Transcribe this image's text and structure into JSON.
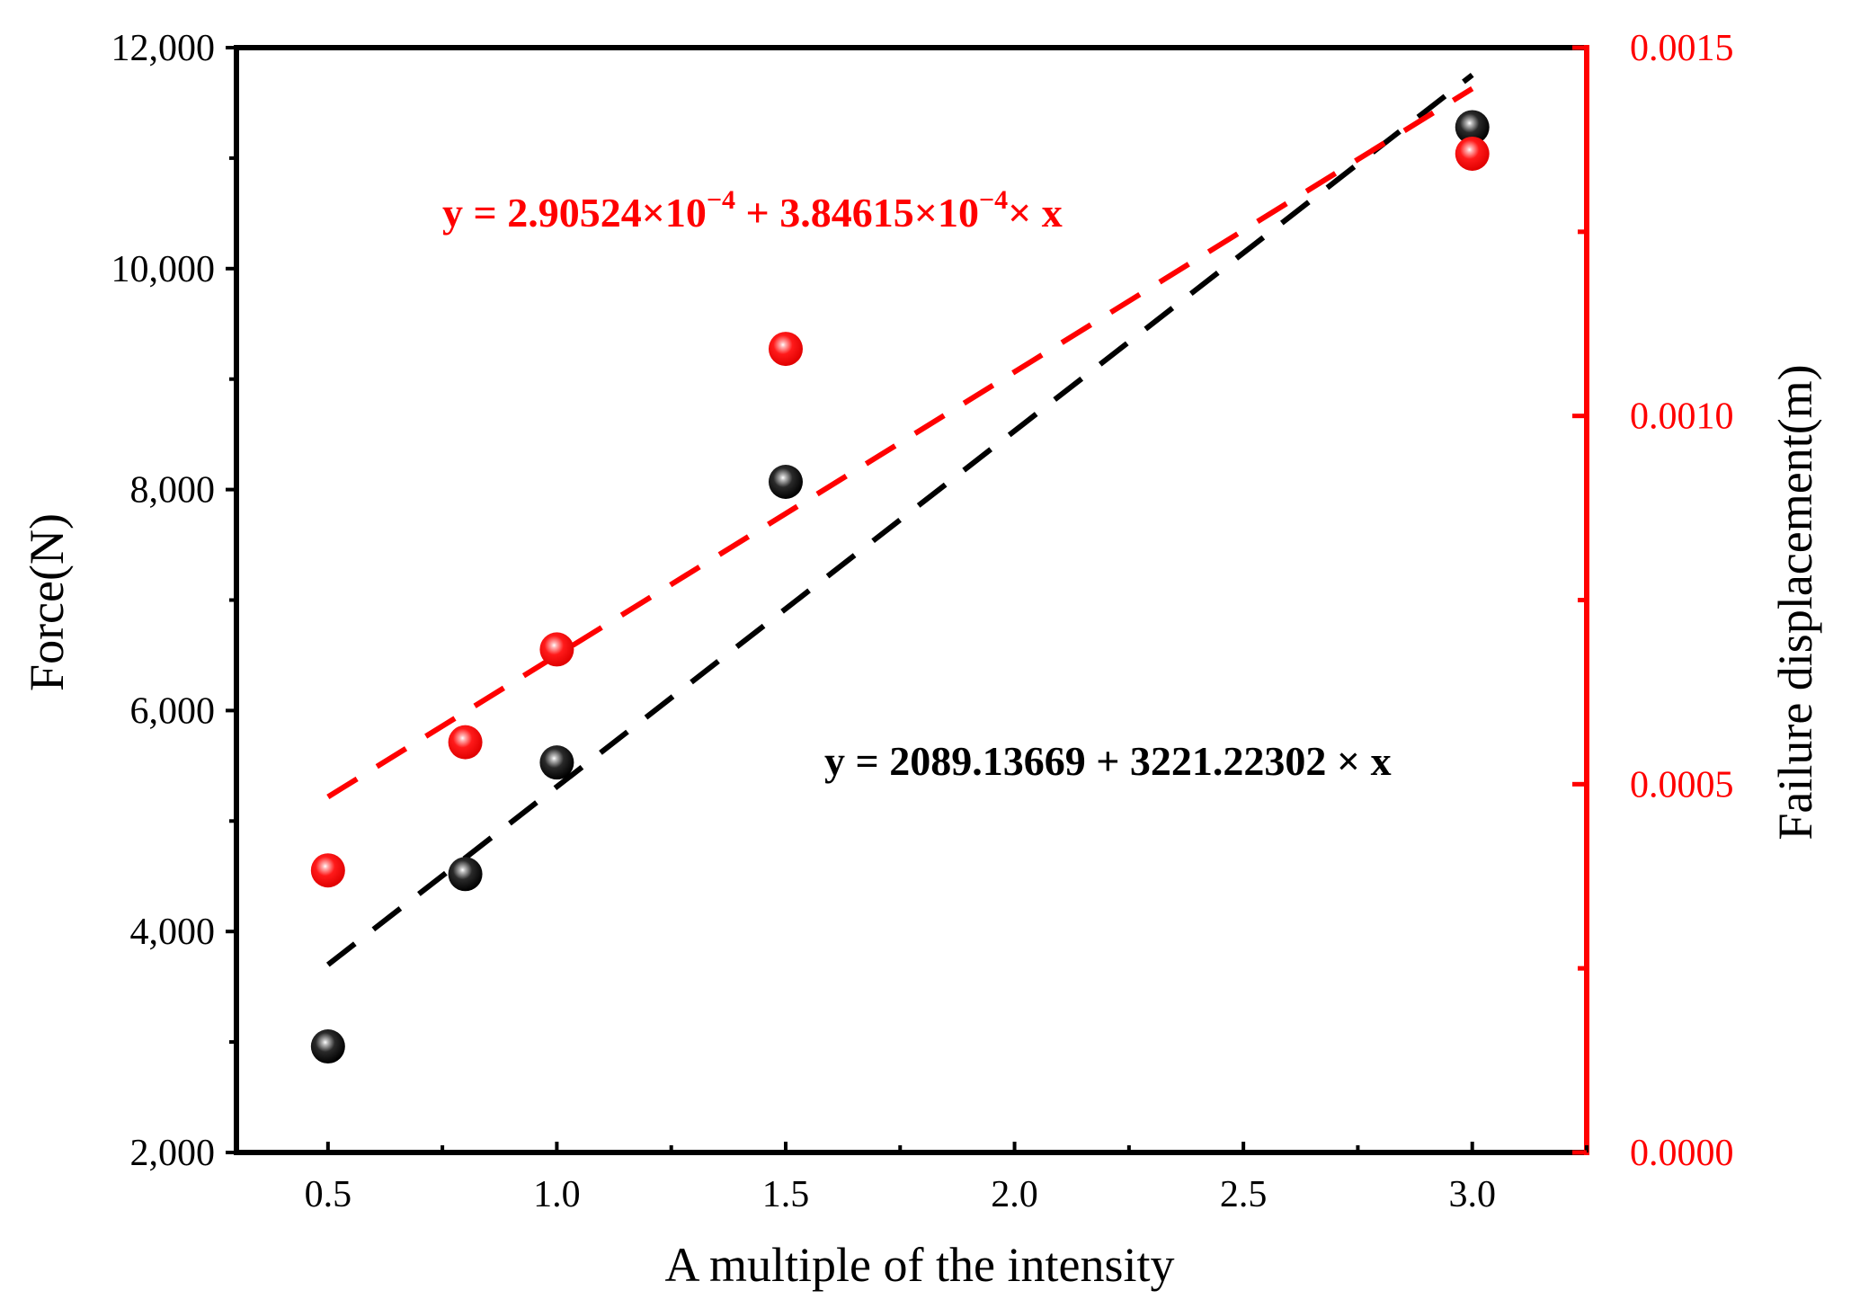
{
  "chart_data": {
    "type": "scatter",
    "title": "",
    "xlabel": "A multiple of the intensity",
    "ylabel_left": "Force(N)",
    "ylabel_right": "Failure displacement(m)",
    "xlim": [
      0.3,
      3.25
    ],
    "ylim_left": [
      2000,
      12000
    ],
    "ylim_right": [
      0.0,
      0.0015
    ],
    "x_ticks": [
      0.5,
      1.0,
      1.5,
      2.0,
      2.5,
      3.0
    ],
    "x_tick_labels": [
      "0.5",
      "1.0",
      "1.5",
      "2.0",
      "2.5",
      "3.0"
    ],
    "y_left_ticks": [
      2000,
      4000,
      6000,
      8000,
      10000,
      12000
    ],
    "y_left_tick_labels": [
      "2,000",
      "4,000",
      "6,000",
      "8,000",
      "10,000",
      "12,000"
    ],
    "y_right_ticks": [
      0.0,
      0.0005,
      0.001,
      0.0015
    ],
    "y_right_tick_labels": [
      "0.0000",
      "0.0005",
      "0.0010",
      "0.0015"
    ],
    "grid": false,
    "colors": {
      "left_axis": "#000000",
      "right_axis": "#ff0000"
    },
    "series": [
      {
        "name": "Force",
        "axis": "left",
        "color": "#000000",
        "x": [
          0.5,
          0.8,
          1.0,
          1.5,
          3.0
        ],
        "y": [
          2960,
          4520,
          5530,
          8070,
          11280
        ],
        "fit": {
          "intercept": 2089.13669,
          "slope": 3221.22302,
          "x_range": [
            0.5,
            3.0
          ]
        },
        "equation_parts": [
          "y = 2089.13669 + 3221.22302 × x"
        ]
      },
      {
        "name": "Failure displacement",
        "axis": "right",
        "color": "#ff0000",
        "x": [
          0.5,
          0.8,
          1.0,
          1.5,
          3.0
        ],
        "y": [
          0.000383,
          0.000557,
          0.000683,
          0.001091,
          0.001356
        ],
        "fit": {
          "intercept": 0.000290524,
          "slope": 0.000384615,
          "x_range": [
            0.5,
            3.0
          ]
        },
        "equation_parts": [
          "y = 2.90524×10",
          "−4",
          " + 3.84615×10",
          "−4",
          "× x"
        ]
      }
    ]
  }
}
